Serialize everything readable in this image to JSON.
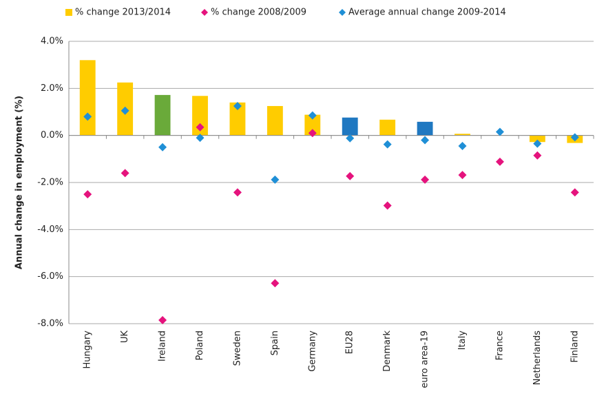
{
  "chart_data": {
    "type": "bar",
    "y_label": "Annual change in employment (%)",
    "categories": [
      "Hungary",
      "UK",
      "Ireland",
      "Poland",
      "Sweden",
      "Spain",
      "Germany",
      "EU28",
      "Denmark",
      "euro area-19",
      "Italy",
      "France",
      "Netherlands",
      "Finland"
    ],
    "series": [
      {
        "name": "% change 2013/2014",
        "color": "#ffcc00",
        "values": [
          3.2,
          2.25,
          1.72,
          1.68,
          1.4,
          1.25,
          0.88,
          0.76,
          0.67,
          0.58,
          0.07,
          0,
          -0.28,
          -0.32
        ],
        "colors": [
          "#ffcc00",
          "#ffcc00",
          "#6aaa3a",
          "#ffcc00",
          "#ffcc00",
          "#ffcc00",
          "#ffcc00",
          "#1f78c1",
          "#ffcc00",
          "#1f78c1",
          "#ffcc00",
          "#ffcc00",
          "#ffcc00",
          "#ffcc00"
        ]
      },
      {
        "name": "% change 2008/2009",
        "color": "#e5137d",
        "marker": "diamond",
        "values": [
          -2.5,
          -1.6,
          -7.85,
          0.35,
          -2.42,
          -6.28,
          0.1,
          -1.73,
          -2.98,
          -1.88,
          -1.68,
          -1.12,
          -0.85,
          -2.42
        ]
      },
      {
        "name": "Average annual change 2009-2014",
        "color": "#1f8fd6",
        "marker": "diamond",
        "values": [
          0.8,
          1.05,
          -0.5,
          -0.1,
          1.25,
          -1.88,
          0.85,
          -0.12,
          -0.38,
          -0.2,
          -0.45,
          0.15,
          -0.35,
          -0.08
        ]
      }
    ],
    "ylim": [
      -8,
      4
    ],
    "yticks": [
      {
        "value": -8,
        "label": "-8.0%"
      },
      {
        "value": -6,
        "label": "-6.0%"
      },
      {
        "value": -4,
        "label": "-4.0%"
      },
      {
        "value": -2,
        "label": "-2.0%"
      },
      {
        "value": 0,
        "label": "0.0%"
      },
      {
        "value": 2,
        "label": "2.0%"
      },
      {
        "value": 4,
        "label": "4.0%"
      }
    ],
    "grid": true,
    "legend": "top"
  }
}
